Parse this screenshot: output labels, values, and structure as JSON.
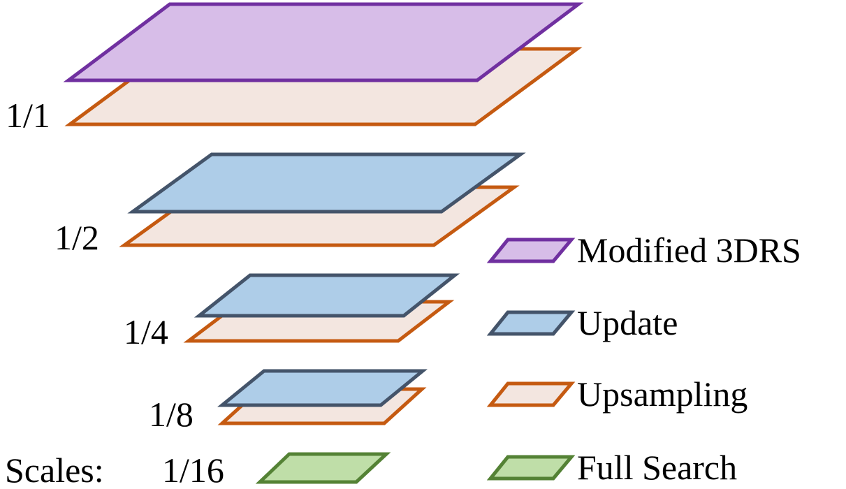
{
  "colors": {
    "modified_3drs": {
      "fill": "#d7bde8",
      "stroke": "#7030a0"
    },
    "update": {
      "fill": "#aecde8",
      "stroke": "#44546a"
    },
    "upsampling": {
      "fill": "#f3e6e0",
      "stroke": "#c55a11"
    },
    "full_search": {
      "fill": "#bfdea8",
      "stroke": "#548235"
    }
  },
  "scales": {
    "prefix": "Scales:",
    "s1_1": "1/1",
    "s1_2": "1/2",
    "s1_4": "1/4",
    "s1_8": "1/8",
    "s1_16": "1/16"
  },
  "legend": {
    "modified_3drs": "Modified 3DRS",
    "update": "Update",
    "upsampling": "Upsampling",
    "full_search": "Full Search"
  }
}
